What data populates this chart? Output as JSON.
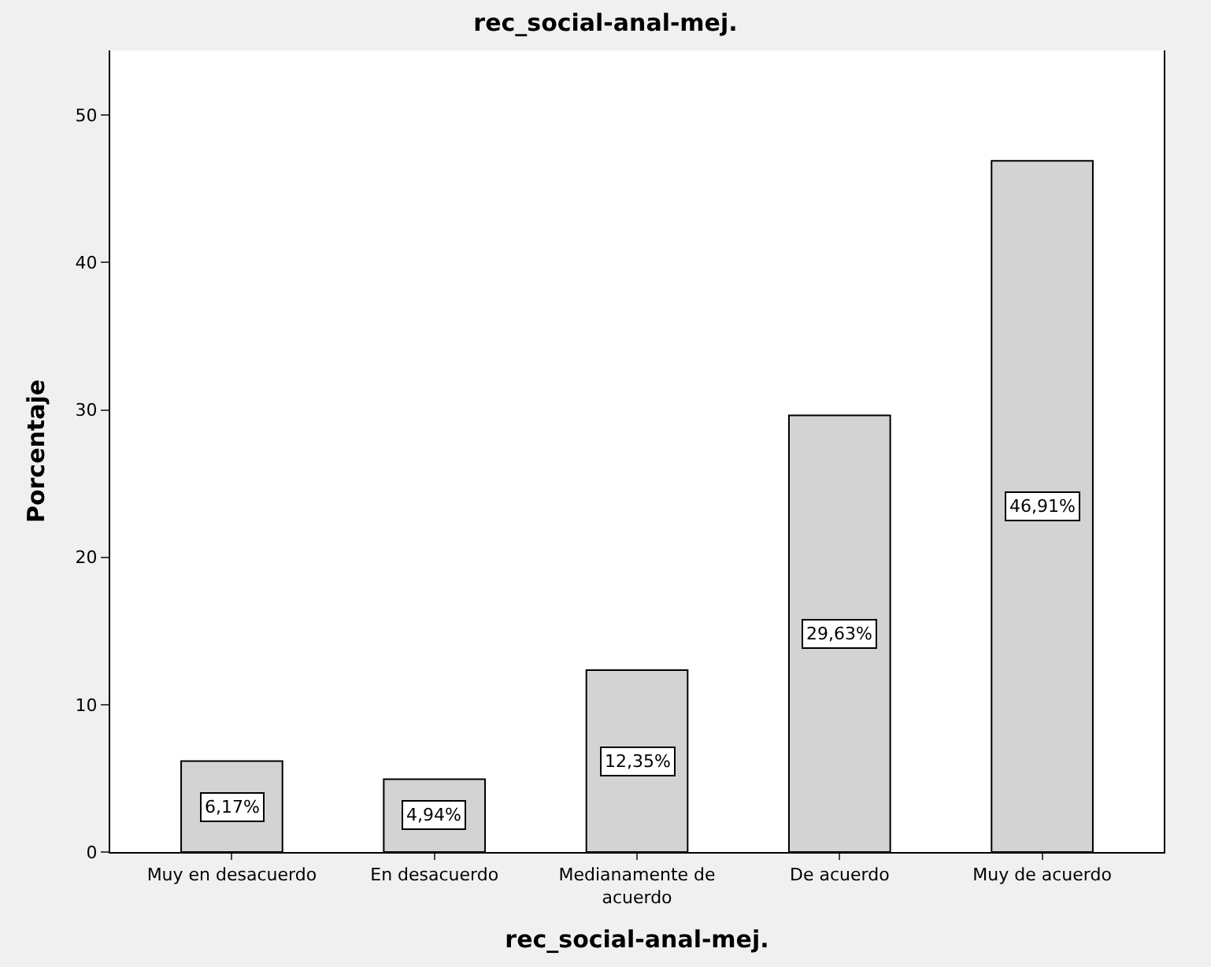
{
  "chart_data": {
    "type": "bar",
    "title": "rec_social-anal-mej.",
    "xlabel": "rec_social-anal-mej.",
    "ylabel": "Porcentaje",
    "categories": [
      "Muy en desacuerdo",
      "En desacuerdo",
      "Medianamente de acuerdo",
      "De acuerdo",
      "Muy de acuerdo"
    ],
    "values": [
      6.17,
      4.94,
      12.35,
      29.63,
      46.91
    ],
    "value_labels": [
      "6,17%",
      "4,94%",
      "12,35%",
      "29,63%",
      "46,91%"
    ],
    "color": "#d3d3d3",
    "ylim": [
      0,
      54.4
    ],
    "yticks": [
      0,
      10,
      20,
      30,
      40,
      50
    ]
  }
}
